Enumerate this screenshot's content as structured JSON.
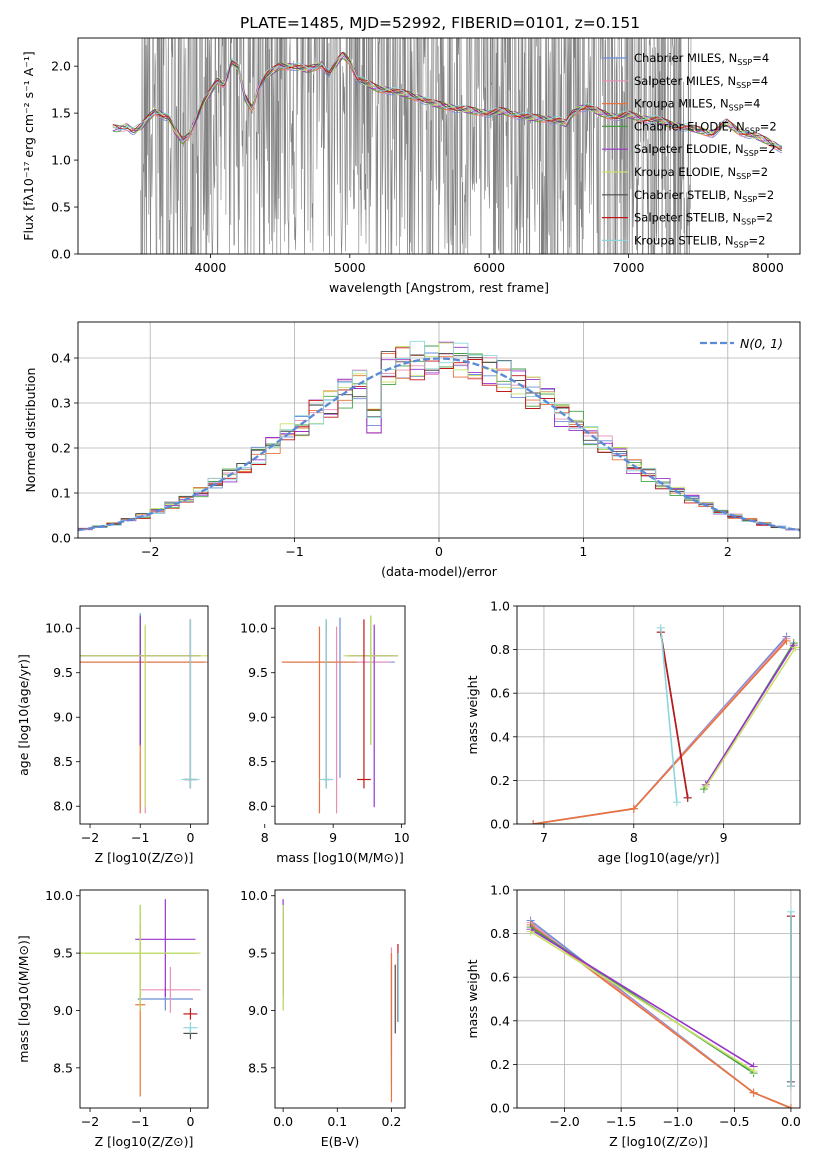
{
  "title": "PLATE=1485, MJD=52992, FIBERID=0101, z=0.151",
  "colors": {
    "grid": "#b0b0b0",
    "data": "#808080",
    "normal": "#5b8bd6",
    "models": [
      "#6a8fd8",
      "#e88fb6",
      "#e8743b",
      "#44a044",
      "#9933cc",
      "#c8e06a",
      "#4d4d4d",
      "#c01818",
      "#8fd6dc"
    ]
  },
  "models": [
    {
      "label": "Chabrier MILES, N",
      "sub": "SSP",
      "tail": "=4"
    },
    {
      "label": "Salpeter MILES, N",
      "sub": "SSP",
      "tail": "=4"
    },
    {
      "label": "Kroupa MILES, N",
      "sub": "SSP",
      "tail": "=4"
    },
    {
      "label": "Chabrier ELODIE, N",
      "sub": "SSP",
      "tail": "=2"
    },
    {
      "label": "Salpeter ELODIE, N",
      "sub": "SSP",
      "tail": "=2"
    },
    {
      "label": "Kroupa ELODIE, N",
      "sub": "SSP",
      "tail": "=2"
    },
    {
      "label": "Chabrier STELIB, N",
      "sub": "SSP",
      "tail": "=2"
    },
    {
      "label": "Salpeter STELIB, N",
      "sub": "SSP",
      "tail": "=2"
    },
    {
      "label": "Kroupa STELIB, N",
      "sub": "SSP",
      "tail": "=2"
    }
  ],
  "chart_data": [
    {
      "type": "line",
      "panel": "spectrum",
      "xlabel": "wavelength [Angstrom, rest frame]",
      "ylabel": "Flux [fλ10⁻¹⁷ erg cm⁻² s⁻¹ A⁻¹]",
      "xlim": [
        3050,
        8230
      ],
      "ylim": [
        0,
        2.3
      ],
      "xticks": [
        4000,
        5000,
        6000,
        7000,
        8000
      ],
      "yticks": [
        "0.0",
        "0.5",
        "1.0",
        "1.5",
        "2.0"
      ],
      "model_continuum": {
        "x": [
          3300,
          3350,
          3400,
          3450,
          3500,
          3600,
          3700,
          3750,
          3800,
          3850,
          3900,
          3950,
          4000,
          4050,
          4100,
          4150,
          4200,
          4250,
          4300,
          4350,
          4400,
          4450,
          4500,
          4600,
          4700,
          4800,
          4850,
          4900,
          4950,
          5000,
          5050,
          5100,
          5200,
          5300,
          5400,
          5500,
          5600,
          5700,
          5800,
          5900,
          6000,
          6100,
          6200,
          6300,
          6400,
          6500,
          6550,
          6600,
          6650,
          6700,
          6800,
          6900,
          7000,
          7100,
          7200,
          7300,
          7400,
          7500,
          7600,
          7700,
          7800,
          7900,
          8000,
          8100
        ],
        "y": [
          1.34,
          1.33,
          1.36,
          1.31,
          1.35,
          1.52,
          1.45,
          1.3,
          1.2,
          1.28,
          1.45,
          1.62,
          1.72,
          1.85,
          1.8,
          2.05,
          1.98,
          1.65,
          1.55,
          1.8,
          1.9,
          1.95,
          2.0,
          2.0,
          1.96,
          2.02,
          1.92,
          2.02,
          2.12,
          2.05,
          1.88,
          1.83,
          1.76,
          1.74,
          1.7,
          1.66,
          1.6,
          1.57,
          1.54,
          1.52,
          1.5,
          1.52,
          1.48,
          1.45,
          1.44,
          1.42,
          1.38,
          1.5,
          1.55,
          1.57,
          1.5,
          1.46,
          1.48,
          1.44,
          1.43,
          1.38,
          1.35,
          1.32,
          1.28,
          1.4,
          1.3,
          1.26,
          1.2,
          1.12
        ]
      },
      "data_range": [
        3500,
        7450
      ]
    },
    {
      "type": "line",
      "panel": "residuals",
      "xlabel": "(data-model)/error",
      "ylabel": "Normed distribution",
      "xlim": [
        -2.5,
        2.5
      ],
      "ylim": [
        0,
        0.48
      ],
      "xticks": [
        "−2",
        "−1",
        "0",
        "1",
        "2"
      ],
      "yticks": [
        "0.0",
        "0.1",
        "0.2",
        "0.3",
        "0.4"
      ],
      "legend": "N(0, 1)",
      "series": [
        {
          "name": "N(0, 1)",
          "mean": 0,
          "sd": 1
        }
      ]
    },
    {
      "type": "scatter",
      "panel": "age-vs-Z",
      "xlabel": "Z [log10(Z/Z⊙)]",
      "ylabel": "age [log10(age/yr)]",
      "xlim": [
        -2.2,
        0.35
      ],
      "ylim": [
        7.8,
        10.25
      ],
      "xticks": [
        "−2",
        "−1",
        "0"
      ],
      "yticks": [
        "8.0",
        "8.5",
        "9.0",
        "9.5",
        "10.0"
      ],
      "points": [
        {
          "m": 0,
          "x": -1.0,
          "y": 9.62,
          "ex": 1.25,
          "ey": [
            0.95,
            0.55
          ]
        },
        {
          "m": 1,
          "x": -0.9,
          "y": 9.62,
          "ex": 1.3,
          "ey": [
            1.7,
            0.4
          ]
        },
        {
          "m": 2,
          "x": -1.0,
          "y": 9.62,
          "ex": 1.3,
          "ey": [
            1.7,
            0.4
          ]
        },
        {
          "m": 3,
          "x": -1.0,
          "y": 9.69,
          "ex": 1.2,
          "ey": [
            1.0,
            0.45
          ]
        },
        {
          "m": 4,
          "x": -1.0,
          "y": 9.69,
          "ex": 1.2,
          "ey": [
            1.0,
            0.45
          ]
        },
        {
          "m": 5,
          "x": -0.9,
          "y": 9.69,
          "ex": 1.3,
          "ey": [
            1.7,
            0.35
          ]
        },
        {
          "m": 6,
          "x": 0.0,
          "y": 8.3,
          "ex": 0.12,
          "ey": [
            0.1,
            1.8
          ]
        },
        {
          "m": 7,
          "x": 0.0,
          "y": 8.3,
          "ex": 0.12,
          "ey": [
            0.1,
            1.8
          ]
        },
        {
          "m": 8,
          "x": 0.0,
          "y": 8.3,
          "ex": 0.18,
          "ey": [
            0.1,
            1.8
          ]
        }
      ]
    },
    {
      "type": "scatter",
      "panel": "age-vs-mass",
      "xlabel": "mass [log10(M/M⊙)]",
      "ylabel": "",
      "xlim": [
        8.15,
        10.05
      ],
      "ylim": [
        7.8,
        10.25
      ],
      "xticks": [
        "8",
        "9",
        "10"
      ],
      "yticks": [
        "8.0",
        "8.5",
        "9.0",
        "9.5",
        "10.0"
      ],
      "points": [
        {
          "m": 0,
          "x": 9.1,
          "y": 9.62,
          "ex": 0.8,
          "ey": [
            1.3,
            0.5
          ]
        },
        {
          "m": 1,
          "x": 9.05,
          "y": 9.62,
          "ex": 0.8,
          "ey": [
            1.7,
            0.4
          ]
        },
        {
          "m": 2,
          "x": 8.8,
          "y": 9.62,
          "ex": 0.55,
          "ey": [
            1.7,
            0.4
          ]
        },
        {
          "m": 3,
          "x": 9.55,
          "y": 9.69,
          "ex": 0.35,
          "ey": [
            1.0,
            0.45
          ]
        },
        {
          "m": 4,
          "x": 9.6,
          "y": 9.69,
          "ex": 0.35,
          "ey": [
            1.7,
            0.35
          ]
        },
        {
          "m": 5,
          "x": 9.55,
          "y": 9.69,
          "ex": 0.4,
          "ey": [
            1.0,
            0.45
          ]
        },
        {
          "m": 6,
          "x": 8.9,
          "y": 8.3,
          "ex": 0.05,
          "ey": [
            0.1,
            1.8
          ]
        },
        {
          "m": 7,
          "x": 9.45,
          "y": 8.3,
          "ex": 0.1,
          "ey": [
            0.1,
            1.8
          ]
        },
        {
          "m": 8,
          "x": 8.9,
          "y": 8.3,
          "ex": 0.1,
          "ey": [
            0.1,
            1.8
          ]
        }
      ]
    },
    {
      "type": "line",
      "panel": "weight-vs-age",
      "xlabel": "age [log10(age/yr)]",
      "ylabel": "mass weight",
      "xlim": [
        6.7,
        9.85
      ],
      "ylim": [
        0,
        1
      ],
      "xticks": [
        "7",
        "8",
        "9"
      ],
      "yticks": [
        "0.0",
        "0.2",
        "0.4",
        "0.6",
        "0.8",
        "1.0"
      ],
      "series": [
        {
          "m": 0,
          "x": [
            6.88,
            8.0,
            9.7
          ],
          "y": [
            0.0,
            0.07,
            0.86
          ]
        },
        {
          "m": 1,
          "x": [
            6.88,
            8.0,
            9.7
          ],
          "y": [
            0.0,
            0.07,
            0.85
          ]
        },
        {
          "m": 2,
          "x": [
            6.88,
            8.0,
            9.7
          ],
          "y": [
            0.0,
            0.07,
            0.84
          ]
        },
        {
          "m": 3,
          "x": [
            8.78,
            9.78
          ],
          "y": [
            0.16,
            0.83
          ]
        },
        {
          "m": 4,
          "x": [
            8.8,
            9.78
          ],
          "y": [
            0.18,
            0.82
          ]
        },
        {
          "m": 5,
          "x": [
            8.8,
            9.8
          ],
          "y": [
            0.17,
            0.81
          ]
        },
        {
          "m": 6,
          "x": [
            8.3,
            8.6
          ],
          "y": [
            0.88,
            0.12
          ]
        },
        {
          "m": 7,
          "x": [
            8.3,
            8.6
          ],
          "y": [
            0.88,
            0.12
          ]
        },
        {
          "m": 8,
          "x": [
            8.3,
            8.48
          ],
          "y": [
            0.9,
            0.1
          ]
        }
      ]
    },
    {
      "type": "scatter",
      "panel": "mass-vs-Z",
      "xlabel": "Z [log10(Z/Z⊙)]",
      "ylabel": "mass [log10(M/M⊙)]",
      "xlim": [
        -2.2,
        0.35
      ],
      "ylim": [
        8.15,
        10.05
      ],
      "xticks": [
        "−2",
        "−1",
        "0"
      ],
      "yticks": [
        "8.5",
        "9.0",
        "9.5",
        "10.0"
      ],
      "points": [
        {
          "m": 0,
          "x": -0.5,
          "y": 9.1,
          "ex": 0.55,
          "ey": [
            0.1,
            0.1
          ]
        },
        {
          "m": 1,
          "x": -0.4,
          "y": 9.18,
          "ex": 0.6,
          "ey": [
            0.2,
            0.2
          ]
        },
        {
          "m": 2,
          "x": -1.0,
          "y": 9.05,
          "ex": 0.1,
          "ey": [
            0.8,
            0.7
          ]
        },
        {
          "m": 3,
          "x": -1.0,
          "y": 9.5,
          "ex": 1.1,
          "ey": [
            0.5,
            0.42
          ]
        },
        {
          "m": 4,
          "x": -0.5,
          "y": 9.62,
          "ex": 0.6,
          "ey": [
            0.5,
            0.35
          ]
        },
        {
          "m": 5,
          "x": -1.0,
          "y": 9.5,
          "ex": 1.2,
          "ey": [
            0.5,
            0.42
          ]
        },
        {
          "m": 6,
          "x": 0.0,
          "y": 8.8,
          "ex": 0.14,
          "ey": [
            0.05,
            0.05
          ]
        },
        {
          "m": 7,
          "x": 0.0,
          "y": 8.97,
          "ex": 0.14,
          "ey": [
            0.05,
            0.05
          ]
        },
        {
          "m": 8,
          "x": 0.0,
          "y": 8.85,
          "ex": 0.14,
          "ey": [
            0.05,
            0.05
          ]
        }
      ]
    },
    {
      "type": "scatter",
      "panel": "mass-vs-EBV",
      "xlabel": "E(B-V)",
      "ylabel": "",
      "xlim": [
        -0.015,
        0.225
      ],
      "ylim": [
        8.15,
        10.05
      ],
      "xticks": [
        "0.0",
        "0.1",
        "0.2"
      ],
      "yticks": [
        "8.5",
        "9.0",
        "9.5",
        "10.0"
      ],
      "points": [
        {
          "m": 0,
          "x": 0.2,
          "y": 9.1,
          "ey": [
            0.5,
            0.3
          ]
        },
        {
          "m": 1,
          "x": 0.2,
          "y": 9.05,
          "ey": [
            0.7,
            0.5
          ]
        },
        {
          "m": 2,
          "x": 0.2,
          "y": 9.0,
          "ey": [
            0.8,
            0.5
          ]
        },
        {
          "m": 3,
          "x": 0.0,
          "y": 9.5,
          "ey": [
            0.5,
            0.42
          ]
        },
        {
          "m": 4,
          "x": 0.0,
          "y": 9.62,
          "ey": [
            0.5,
            0.35
          ]
        },
        {
          "m": 5,
          "x": 0.0,
          "y": 9.5,
          "ey": [
            0.5,
            0.42
          ]
        },
        {
          "m": 6,
          "x": 0.207,
          "y": 9.1,
          "ey": [
            0.3,
            0.3
          ]
        },
        {
          "m": 7,
          "x": 0.212,
          "y": 9.2,
          "ey": [
            0.3,
            0.38
          ]
        },
        {
          "m": 8,
          "x": 0.213,
          "y": 9.2,
          "ey": [
            0.3,
            0.3
          ]
        }
      ]
    },
    {
      "type": "line",
      "panel": "weight-vs-Z",
      "xlabel": "Z [log10(Z/Z⊙)]",
      "ylabel": "mass weight",
      "xlim": [
        -2.42,
        0.08
      ],
      "ylim": [
        0,
        1
      ],
      "xticks": [
        "−2.0",
        "−1.5",
        "−1.0",
        "−0.5",
        "0.0"
      ],
      "yticks": [
        "0.0",
        "0.2",
        "0.4",
        "0.6",
        "0.8",
        "1.0"
      ],
      "series": [
        {
          "m": 0,
          "x": [
            -2.3,
            -0.33,
            0.0
          ],
          "y": [
            0.86,
            0.07,
            0.0
          ]
        },
        {
          "m": 1,
          "x": [
            -2.3,
            -0.33,
            0.0
          ],
          "y": [
            0.85,
            0.07,
            0.0
          ]
        },
        {
          "m": 2,
          "x": [
            -2.3,
            -0.33,
            0.0
          ],
          "y": [
            0.84,
            0.07,
            0.0
          ]
        },
        {
          "m": 3,
          "x": [
            -2.3,
            -0.33
          ],
          "y": [
            0.83,
            0.16
          ]
        },
        {
          "m": 4,
          "x": [
            -2.3,
            -0.33
          ],
          "y": [
            0.82,
            0.19
          ]
        },
        {
          "m": 5,
          "x": [
            -2.3,
            -0.33
          ],
          "y": [
            0.81,
            0.17
          ]
        },
        {
          "m": 6,
          "x": [
            0.0,
            0.0
          ],
          "y": [
            0.88,
            0.12
          ]
        },
        {
          "m": 7,
          "x": [
            0.0,
            0.0
          ],
          "y": [
            0.88,
            0.1
          ]
        },
        {
          "m": 8,
          "x": [
            0.0,
            0.0
          ],
          "y": [
            0.9,
            0.1
          ]
        }
      ]
    }
  ]
}
